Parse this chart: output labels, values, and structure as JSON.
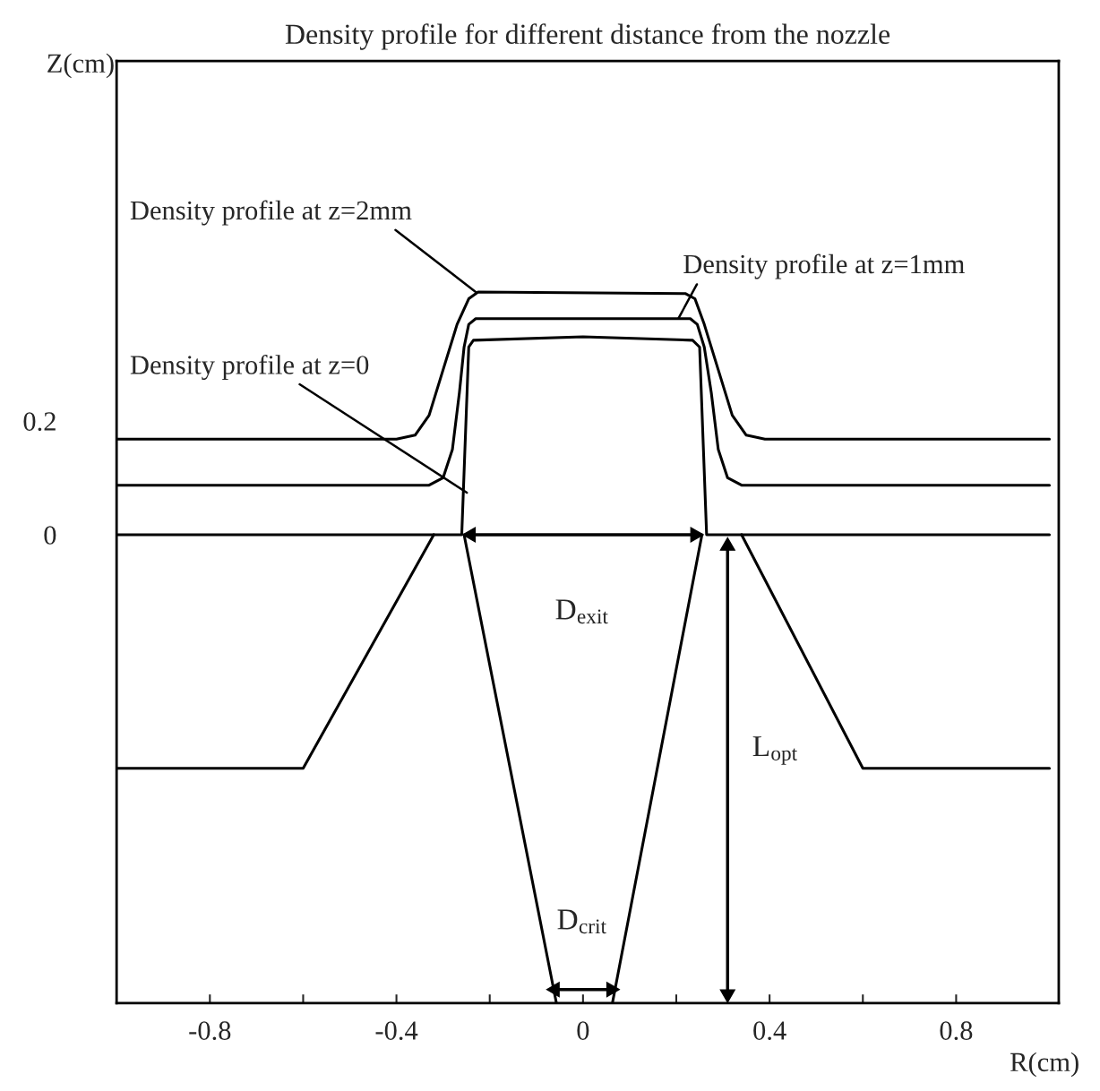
{
  "chart_data": {
    "type": "line",
    "title": "Density profile for different distance from the nozzle",
    "xlabel": "R(cm)",
    "ylabel": "Z(cm)",
    "xlim": [
      -1,
      1.02
    ],
    "ylim": [
      -0.824,
      0.833
    ],
    "xticks": [
      {
        "value": -0.8,
        "label": "-0.8"
      },
      {
        "value": -0.6,
        "label": null
      },
      {
        "value": -0.4,
        "label": "-0.4"
      },
      {
        "value": -0.2,
        "label": null
      },
      0,
      {
        "value": 0.2,
        "label": null
      },
      0.4,
      {
        "value": 0.6,
        "label": null
      },
      0.8
    ],
    "yticks": [
      0,
      0.2
    ],
    "grid": false,
    "marker": "none",
    "line_style": "solid",
    "series": [
      {
        "color": "#000000",
        "x": [
          -1,
          -0.26,
          -0.245,
          -0.235,
          0,
          0.235,
          0.25,
          0.265,
          1
        ],
        "values": [
          0,
          0,
          0.33,
          0.342,
          0.348,
          0.342,
          0.33,
          0,
          0
        ]
      },
      {
        "color": "#000000",
        "x": [
          -1,
          -0.33,
          -0.3,
          -0.28,
          -0.265,
          -0.255,
          -0.245,
          -0.23,
          0.23,
          0.245,
          0.26,
          0.275,
          0.29,
          0.31,
          0.34,
          1
        ],
        "values": [
          0.087,
          0.087,
          0.1,
          0.15,
          0.25,
          0.33,
          0.37,
          0.38,
          0.38,
          0.37,
          0.33,
          0.25,
          0.15,
          0.1,
          0.087,
          0.087
        ]
      },
      {
        "color": "#000000",
        "x": [
          -1,
          -0.4,
          -0.36,
          -0.33,
          -0.3,
          -0.27,
          -0.245,
          -0.225,
          0.22,
          0.24,
          0.26,
          0.29,
          0.32,
          0.35,
          0.39,
          1
        ],
        "values": [
          0.168,
          0.168,
          0.175,
          0.21,
          0.29,
          0.37,
          0.415,
          0.427,
          0.424,
          0.415,
          0.37,
          0.29,
          0.21,
          0.175,
          0.168,
          0.168
        ]
      },
      {
        "color": "#000000",
        "x": [
          -1,
          -0.6,
          -0.32
        ],
        "values": [
          -0.411,
          -0.411,
          0
        ]
      },
      {
        "color": "#000000",
        "x": [
          0.34,
          0.6,
          1
        ],
        "values": [
          0,
          -0.411,
          -0.411
        ]
      },
      {
        "color": "#000000",
        "x": [
          -0.255,
          -0.057
        ],
        "values": [
          0,
          -0.824
        ]
      },
      {
        "color": "#000000",
        "x": [
          0.255,
          0.063
        ],
        "values": [
          0,
          -0.824
        ]
      },
      {
        "color": "#000000",
        "marker": "triangle",
        "x": [
          -0.24,
          0.24
        ],
        "values": [
          0,
          0
        ]
      },
      {
        "color": "#000000",
        "marker": "triangle",
        "x": [
          0.31,
          0.31
        ],
        "values": [
          -0.02,
          -0.808
        ]
      },
      {
        "color": "#000000",
        "marker": "triangle",
        "x": [
          -0.06,
          0.06
        ],
        "values": [
          -0.8,
          -0.8
        ]
      }
    ],
    "annotations": [
      {
        "text": "Density profile at z=2mm",
        "x": -0.23,
        "y": 0.427
      },
      {
        "text": "Density profile at z=1mm",
        "x": 0.205,
        "y": 0.381
      },
      {
        "text": "Density profile at z=0",
        "x": -0.249,
        "y": 0.074
      },
      "D$_{exit}$",
      "L$_{opt}$",
      "D$_{crit}$"
    ]
  }
}
